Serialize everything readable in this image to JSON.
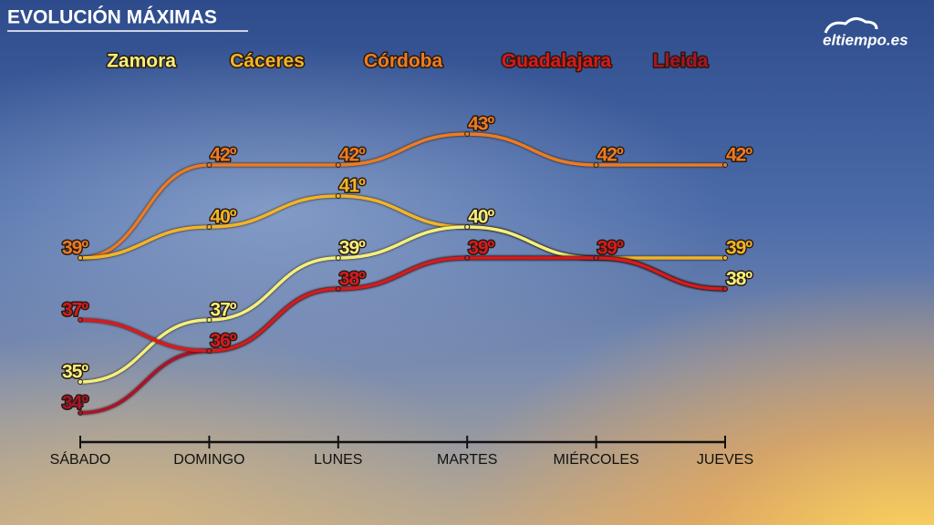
{
  "chart_data": {
    "type": "line",
    "title": "EVOLUCIÓN MÁXIMAS",
    "logo": "eltiempo.es",
    "categories": [
      "SÁBADO",
      "DOMINGO",
      "LUNES",
      "MARTES",
      "MIÉRCOLES",
      "JUEVES"
    ],
    "series": [
      {
        "name": "Zamora",
        "color": "#f4f07c",
        "values": [
          35,
          37,
          39,
          40,
          39,
          38
        ],
        "value_labels": [
          "35º",
          "37º",
          "39º",
          "40º",
          null,
          "38º"
        ]
      },
      {
        "name": "Cáceres",
        "color": "#f2b526",
        "values": [
          39,
          40,
          41,
          40,
          39,
          39
        ],
        "value_labels": [
          null,
          "40º",
          "41º",
          null,
          null,
          "39º"
        ]
      },
      {
        "name": "Córdoba",
        "color": "#ec7c22",
        "values": [
          39,
          42,
          42,
          43,
          42,
          42
        ],
        "value_labels": [
          "39º",
          "42º",
          "42º",
          "43º",
          "42º",
          "42º"
        ]
      },
      {
        "name": "Guadalajara",
        "color": "#d81a1e",
        "values": [
          37,
          36,
          38,
          39,
          39,
          38
        ],
        "value_labels": [
          "37º",
          "36º",
          "38º",
          "39º",
          "39º",
          null
        ]
      },
      {
        "name": "Lleida",
        "color": "#a8142a",
        "values": [
          34,
          36,
          38,
          39,
          39,
          38
        ],
        "value_labels": [
          "34º",
          null,
          null,
          null,
          null,
          null
        ]
      }
    ]
  }
}
